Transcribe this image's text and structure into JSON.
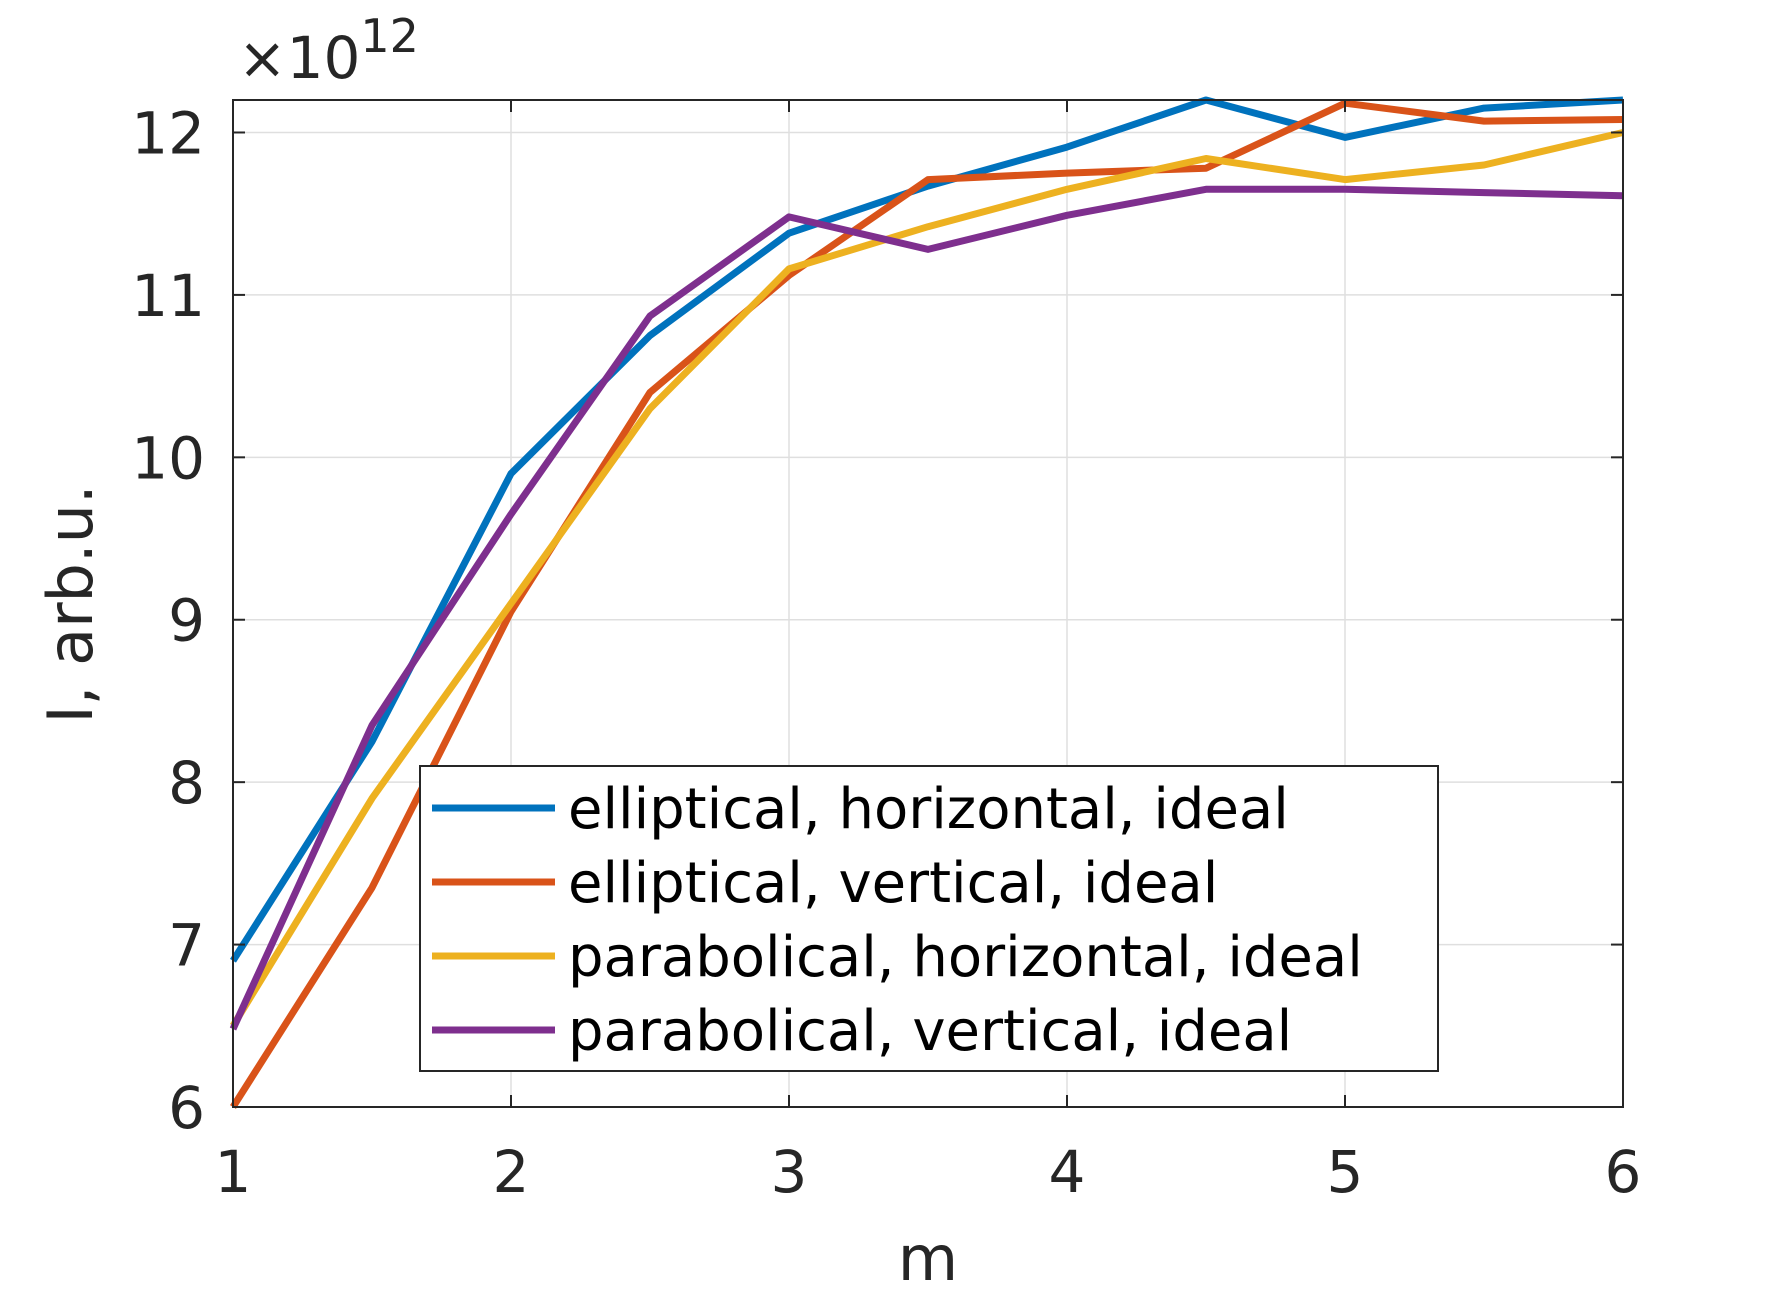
{
  "chart_data": {
    "type": "line",
    "title": "",
    "xlabel": "m",
    "ylabel": "I, arb.u.",
    "exponent_label": "×10",
    "exponent_power": "12",
    "xlim": [
      1,
      6
    ],
    "ylim": [
      6,
      12.2
    ],
    "grid": true,
    "legend_position": "bottom-center",
    "x_ticks": [
      1,
      2,
      3,
      4,
      5,
      6
    ],
    "x_tick_labels": [
      "1",
      "2",
      "3",
      "4",
      "5",
      "6"
    ],
    "y_ticks": [
      6,
      7,
      8,
      9,
      10,
      11,
      12
    ],
    "y_tick_labels": [
      "6",
      "7",
      "8",
      "9",
      "10",
      "11",
      "12"
    ],
    "x": [
      1,
      1.5,
      2,
      2.5,
      3,
      3.5,
      4,
      4.5,
      5,
      5.5,
      6
    ],
    "series": [
      {
        "name": "elliptical, horizontal, ideal",
        "color": "#0072BD",
        "values": [
          6.9,
          8.25,
          9.9,
          10.75,
          11.38,
          11.67,
          11.91,
          12.2,
          11.97,
          12.15,
          12.2
        ]
      },
      {
        "name": "elliptical, vertical, ideal",
        "color": "#D95319",
        "values": [
          6.0,
          7.35,
          9.05,
          10.4,
          11.12,
          11.71,
          11.75,
          11.78,
          12.18,
          12.07,
          12.08
        ]
      },
      {
        "name": "parabolical, horizontal, ideal",
        "color": "#EDB120",
        "values": [
          6.5,
          7.9,
          9.1,
          10.3,
          11.16,
          11.42,
          11.65,
          11.84,
          11.71,
          11.8,
          12.0
        ]
      },
      {
        "name": "parabolical, vertical, ideal",
        "color": "#7E2F8E",
        "values": [
          6.48,
          8.35,
          9.65,
          10.87,
          11.48,
          11.28,
          11.49,
          11.65,
          11.65,
          11.63,
          11.61
        ]
      }
    ]
  }
}
